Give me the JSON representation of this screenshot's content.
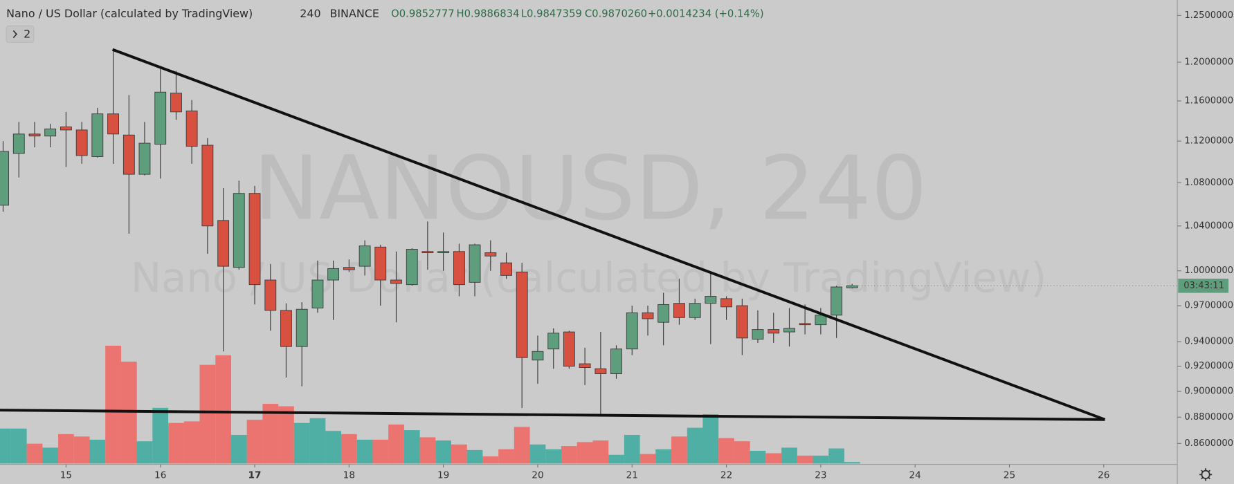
{
  "chart_data": {
    "type": "candlestick",
    "title": "Nano / US Dollar (calculated by TradingView)",
    "interval": "240",
    "exchange": "BINANCE",
    "open_label": "O0.9852777",
    "high_label": "H0.9886834",
    "low_label": "L0.9847359",
    "close_label": "C0.9870260",
    "change_label": "+0.0014234 (+0.14%)",
    "indicators_button": "2",
    "watermark": "NANOUSD, 240",
    "watermark_subtitle": "Nano / US Dollar (calculated by TradingView)",
    "countdown": "03:43:11",
    "log_scale": true,
    "up_color": "#5f9e7c",
    "down_color": "#d8503f",
    "volume_up_color": "#4fafa4",
    "volume_down_color": "#ec7470",
    "x": [
      14.333,
      14.5,
      14.667,
      14.833,
      15,
      15.167,
      15.333,
      15.5,
      15.667,
      15.833,
      16,
      16.167,
      16.333,
      16.5,
      16.667,
      16.833,
      17,
      17.167,
      17.333,
      17.5,
      17.667,
      17.833,
      18,
      18.167,
      18.333,
      18.5,
      18.667,
      18.833,
      19,
      19.167,
      19.333,
      19.5,
      19.667,
      19.833,
      20,
      20.167,
      20.333,
      20.5,
      20.667,
      20.833,
      21,
      21.167,
      21.333,
      21.5,
      21.667,
      21.833,
      22,
      22.167,
      22.333,
      22.5,
      22.667,
      22.833,
      23,
      23.167,
      23.333
    ],
    "open": [
      1.059,
      1.108,
      1.127,
      1.125,
      1.134,
      1.131,
      1.105,
      1.147,
      1.126,
      1.088,
      1.117,
      1.168,
      1.15,
      1.116,
      1.045,
      1.003,
      1.07,
      0.992,
      0.966,
      0.936,
      0.968,
      0.992,
      1.003,
      1.004,
      1.021,
      0.992,
      0.988,
      1.017,
      1.016,
      1.017,
      0.99,
      1.016,
      1.007,
      0.999,
      0.925,
      0.934,
      0.948,
      0.922,
      0.918,
      0.914,
      0.934,
      0.964,
      0.956,
      0.972,
      0.96,
      0.972,
      0.976,
      0.97,
      0.942,
      0.95,
      0.948,
      0.955,
      0.954,
      0.962,
      0.9852777
    ],
    "high": [
      1.12,
      1.139,
      1.139,
      1.137,
      1.149,
      1.139,
      1.153,
      1.214,
      1.166,
      1.139,
      1.193,
      1.191,
      1.161,
      1.123,
      1.075,
      1.082,
      1.077,
      1.006,
      0.972,
      0.973,
      1.009,
      1.009,
      1.01,
      1.027,
      1.023,
      1.017,
      1.02,
      1.044,
      1.034,
      1.024,
      1.024,
      1.027,
      1.016,
      1.007,
      0.945,
      0.951,
      0.949,
      0.935,
      0.948,
      0.937,
      0.97,
      0.97,
      0.981,
      0.993,
      0.976,
      0.998,
      0.978,
      0.976,
      0.966,
      0.964,
      0.968,
      0.971,
      0.968,
      0.987,
      0.9886834
    ],
    "low": [
      1.053,
      1.085,
      1.114,
      1.114,
      1.095,
      1.098,
      1.104,
      1.098,
      1.033,
      1.087,
      1.084,
      1.141,
      1.098,
      1.015,
      0.932,
      1.001,
      0.971,
      0.949,
      0.911,
      0.904,
      0.964,
      0.958,
      0.999,
      0.996,
      0.97,
      0.956,
      0.987,
      1.001,
      1.0,
      0.978,
      0.978,
      1.0,
      0.993,
      0.887,
      0.906,
      0.918,
      0.918,
      0.905,
      0.882,
      0.91,
      0.929,
      0.945,
      0.937,
      0.954,
      0.958,
      0.938,
      0.958,
      0.929,
      0.939,
      0.939,
      0.936,
      0.946,
      0.946,
      0.943,
      0.9847359
    ],
    "close": [
      1.11,
      1.127,
      1.125,
      1.132,
      1.131,
      1.106,
      1.147,
      1.127,
      1.088,
      1.118,
      1.169,
      1.149,
      1.115,
      1.04,
      1.004,
      1.07,
      0.988,
      0.966,
      0.936,
      0.967,
      0.992,
      1.002,
      1.001,
      1.022,
      0.992,
      0.989,
      1.019,
      1.016,
      1.017,
      0.988,
      1.023,
      1.013,
      0.996,
      0.927,
      0.932,
      0.947,
      0.92,
      0.919,
      0.914,
      0.934,
      0.964,
      0.959,
      0.971,
      0.96,
      0.972,
      0.978,
      0.969,
      0.943,
      0.95,
      0.947,
      0.951,
      0.954,
      0.962,
      0.986,
      0.987026
    ],
    "volume": [
      44,
      44,
      25,
      20,
      37,
      34,
      30,
      148,
      128,
      28,
      70,
      51,
      53,
      124,
      136,
      36,
      55,
      75,
      72,
      51,
      57,
      41,
      37,
      30,
      30,
      49,
      42,
      33,
      29,
      24,
      17,
      9,
      18,
      46,
      24,
      18,
      22,
      27,
      29,
      11,
      36,
      12,
      18,
      34,
      45,
      62,
      32,
      28,
      16,
      13,
      20,
      10,
      10,
      19,
      2
    ],
    "xlim": [
      14.3,
      26.78
    ],
    "xticks": [
      15,
      16,
      17,
      18,
      19,
      20,
      21,
      22,
      23,
      24,
      25,
      26
    ],
    "ylim": [
      0.845,
      1.267
    ],
    "yticks": [
      {
        "value": 1.25,
        "label": "1.2500000"
      },
      {
        "value": 1.2,
        "label": "1.2000000"
      },
      {
        "value": 1.16,
        "label": "1.1600000"
      },
      {
        "value": 1.12,
        "label": "1.1200000"
      },
      {
        "value": 1.08,
        "label": "1.0800000"
      },
      {
        "value": 1.04,
        "label": "1.0400000"
      },
      {
        "value": 1.0,
        "label": "1.0000000"
      },
      {
        "value": 0.97,
        "label": "0.9700000"
      },
      {
        "value": 0.94,
        "label": "0.9400000"
      },
      {
        "value": 0.92,
        "label": "0.9200000"
      },
      {
        "value": 0.9,
        "label": "0.9000000"
      },
      {
        "value": 0.88,
        "label": "0.8800000"
      },
      {
        "value": 0.86,
        "label": "0.8600000"
      }
    ]
  }
}
